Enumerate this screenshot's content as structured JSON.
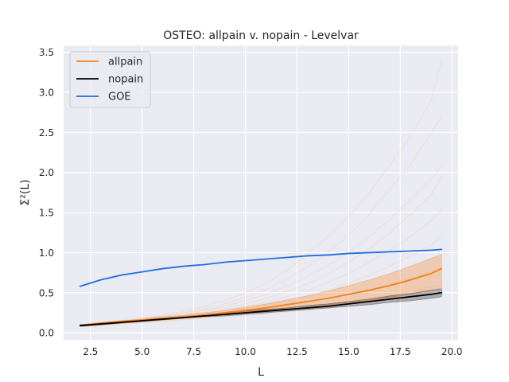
{
  "chart_data": {
    "type": "line",
    "title": "OSTEO: allpain v. nopain - Levelvar",
    "xlabel": "L",
    "ylabel": "Σ²(L)",
    "xlim": [
      1.2,
      20.3
    ],
    "ylim": [
      -0.09,
      3.58
    ],
    "xticks": [
      2.5,
      5.0,
      7.5,
      10.0,
      12.5,
      15.0,
      17.5,
      20.0
    ],
    "yticks": [
      0.0,
      0.5,
      1.0,
      1.5,
      2.0,
      2.5,
      3.0,
      3.5
    ],
    "grid": true,
    "legend_position": "top-left",
    "x": [
      2.0,
      3.0,
      4.0,
      5.0,
      6.0,
      7.0,
      8.0,
      9.0,
      10.0,
      11.0,
      12.0,
      13.0,
      14.0,
      15.0,
      16.0,
      17.0,
      18.0,
      19.0,
      19.5
    ],
    "series": [
      {
        "name": "allpain",
        "color": "#f5811b",
        "values": [
          0.09,
          0.12,
          0.14,
          0.16,
          0.18,
          0.2,
          0.22,
          0.25,
          0.28,
          0.31,
          0.35,
          0.39,
          0.43,
          0.48,
          0.53,
          0.59,
          0.66,
          0.74,
          0.8
        ],
        "band_lower": [
          0.08,
          0.1,
          0.12,
          0.14,
          0.16,
          0.18,
          0.2,
          0.22,
          0.24,
          0.26,
          0.29,
          0.31,
          0.34,
          0.37,
          0.4,
          0.44,
          0.48,
          0.53,
          0.56
        ],
        "band_upper": [
          0.1,
          0.13,
          0.15,
          0.17,
          0.2,
          0.22,
          0.25,
          0.28,
          0.32,
          0.36,
          0.41,
          0.46,
          0.52,
          0.59,
          0.66,
          0.74,
          0.83,
          0.93,
          0.98
        ]
      },
      {
        "name": "nopain",
        "color": "#000000",
        "values": [
          0.09,
          0.11,
          0.13,
          0.15,
          0.17,
          0.19,
          0.21,
          0.23,
          0.25,
          0.27,
          0.29,
          0.31,
          0.33,
          0.36,
          0.39,
          0.42,
          0.45,
          0.48,
          0.5
        ],
        "band_lower": [
          0.08,
          0.1,
          0.12,
          0.14,
          0.16,
          0.18,
          0.2,
          0.21,
          0.23,
          0.25,
          0.27,
          0.29,
          0.31,
          0.33,
          0.35,
          0.38,
          0.4,
          0.43,
          0.45
        ],
        "band_upper": [
          0.1,
          0.12,
          0.14,
          0.16,
          0.18,
          0.2,
          0.22,
          0.24,
          0.27,
          0.29,
          0.31,
          0.34,
          0.36,
          0.39,
          0.42,
          0.46,
          0.49,
          0.53,
          0.55
        ]
      },
      {
        "name": "GOE",
        "color": "#1f6fe0",
        "values": [
          0.58,
          0.66,
          0.72,
          0.76,
          0.8,
          0.83,
          0.85,
          0.88,
          0.9,
          0.92,
          0.94,
          0.96,
          0.97,
          0.99,
          1.0,
          1.01,
          1.02,
          1.03,
          1.04
        ]
      }
    ],
    "individual_allpain_curves": [
      [
        0.09,
        0.12,
        0.15,
        0.18,
        0.22,
        0.27,
        0.33,
        0.4,
        0.5,
        0.62,
        0.78,
        0.98,
        1.2,
        1.45,
        1.75,
        2.1,
        2.45,
        2.9,
        3.4
      ],
      [
        0.09,
        0.12,
        0.15,
        0.18,
        0.21,
        0.25,
        0.3,
        0.36,
        0.44,
        0.54,
        0.67,
        0.82,
        1.0,
        1.22,
        1.48,
        1.8,
        2.1,
        2.5,
        2.7
      ],
      [
        0.09,
        0.11,
        0.14,
        0.17,
        0.2,
        0.24,
        0.28,
        0.33,
        0.4,
        0.48,
        0.58,
        0.7,
        0.84,
        1.0,
        1.2,
        1.42,
        1.66,
        1.92,
        2.08
      ],
      [
        0.09,
        0.11,
        0.13,
        0.16,
        0.19,
        0.22,
        0.26,
        0.3,
        0.36,
        0.43,
        0.51,
        0.61,
        0.73,
        0.88,
        1.05,
        1.25,
        1.48,
        1.72,
        1.95
      ],
      [
        0.08,
        0.11,
        0.13,
        0.15,
        0.18,
        0.21,
        0.24,
        0.28,
        0.33,
        0.38,
        0.45,
        0.53,
        0.63,
        0.74,
        0.88,
        1.03,
        1.2,
        1.4,
        1.55
      ],
      [
        0.08,
        0.1,
        0.12,
        0.15,
        0.17,
        0.2,
        0.23,
        0.26,
        0.3,
        0.35,
        0.4,
        0.46,
        0.53,
        0.62,
        0.72,
        0.83,
        0.96,
        1.1,
        1.2
      ],
      [
        0.08,
        0.1,
        0.12,
        0.14,
        0.16,
        0.18,
        0.21,
        0.24,
        0.27,
        0.3,
        0.34,
        0.38,
        0.43,
        0.48,
        0.54,
        0.61,
        0.68,
        0.76,
        0.82
      ],
      [
        0.08,
        0.1,
        0.12,
        0.13,
        0.15,
        0.17,
        0.19,
        0.21,
        0.24,
        0.26,
        0.29,
        0.32,
        0.35,
        0.39,
        0.43,
        0.47,
        0.52,
        0.57,
        0.6
      ],
      [
        0.08,
        0.1,
        0.11,
        0.13,
        0.14,
        0.16,
        0.18,
        0.2,
        0.22,
        0.24,
        0.26,
        0.28,
        0.31,
        0.33,
        0.36,
        0.39,
        0.42,
        0.45,
        0.47
      ]
    ]
  }
}
